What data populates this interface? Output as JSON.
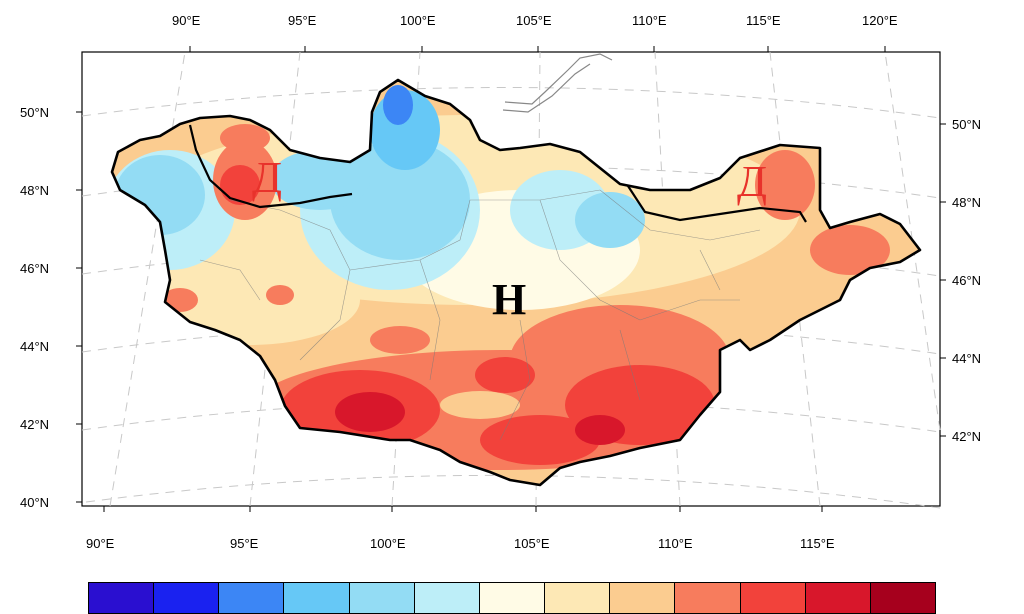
{
  "top_lon_labels": [
    "90°E",
    "95°E",
    "100°E",
    "105°E",
    "110°E",
    "115°E",
    "120°E"
  ],
  "bottom_lon_labels": [
    "90°E",
    "95°E",
    "100°E",
    "105°E",
    "110°E",
    "115°E"
  ],
  "left_lat_labels": [
    "50°N",
    "48°N",
    "46°N",
    "44°N",
    "42°N",
    "40°N"
  ],
  "right_lat_labels": [
    "50°N",
    "48°N",
    "46°N",
    "44°N",
    "42°N"
  ],
  "region_labels": {
    "d_west": "Д",
    "d_east": "Д",
    "h_center": "Н"
  },
  "colorbar": {
    "colors": [
      "#2a0fd0",
      "#1a22f0",
      "#3c86f5",
      "#66c8f6",
      "#93dcf4",
      "#bdeef8",
      "#fffbe6",
      "#fde8b5",
      "#fbcc90",
      "#f77c5d",
      "#f2423b",
      "#d8172b",
      "#a6001d"
    ]
  },
  "colors": {
    "boundary": "#000000",
    "grid": "#bdbdbd",
    "internal_borders": "#7a7a7a"
  }
}
